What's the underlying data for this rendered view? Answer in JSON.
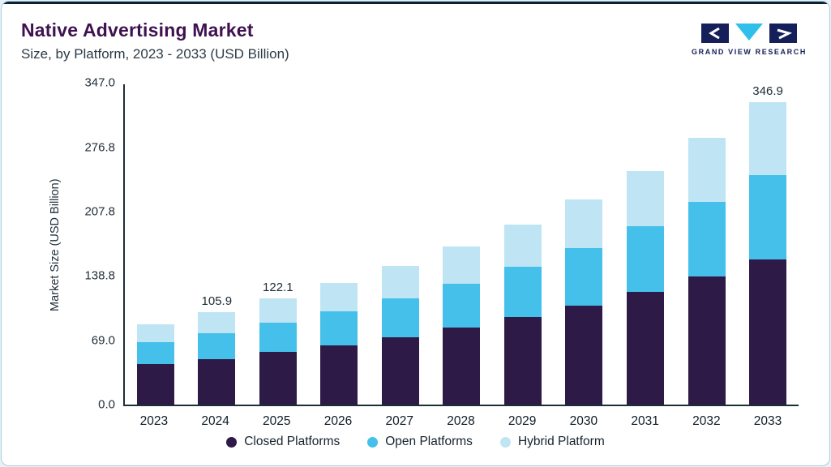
{
  "page": {
    "title": "Native Advertising Market",
    "subtitle": "Size, by Platform, 2023 - 2033 (USD Billion)"
  },
  "logo": {
    "text": "GRAND VIEW RESEARCH"
  },
  "colors": {
    "title_accent": "#3F1150",
    "closed_platforms": "#2E1A47",
    "open_platforms": "#45C0EA",
    "hybrid_platform": "#BFE5F4",
    "logo_navy": "#15205A",
    "logo_cyan": "#2EC0EA"
  },
  "chart_data": {
    "type": "bar",
    "stacked": true,
    "title": "Native Advertising Market",
    "subtitle": "Size, by Platform, 2023 - 2033 (USD Billion)",
    "xlabel": "",
    "ylabel": "Market Size (USD Billion)",
    "ylim": [
      0,
      347
    ],
    "grid": false,
    "legend_position": "bottom",
    "y_ticks": [
      0.0,
      69.0,
      138.8,
      207.8,
      276.8,
      347.0
    ],
    "y_tick_labels": [
      "0.0",
      "69.0",
      "138.8",
      "207.8",
      "276.8",
      "347.0"
    ],
    "categories": [
      "2023",
      "2024",
      "2025",
      "2026",
      "2027",
      "2028",
      "2029",
      "2030",
      "2031",
      "2032",
      "2033"
    ],
    "series": [
      {
        "name": "Closed Platforms",
        "color": "#2E1A47",
        "values": [
          46.1,
          52.5,
          60.0,
          68.2,
          77.5,
          88.0,
          100.0,
          113.7,
          129.3,
          146.9,
          166.0
        ]
      },
      {
        "name": "Open Platforms",
        "color": "#45C0EA",
        "values": [
          25.8,
          29.6,
          34.2,
          39.1,
          44.5,
          50.7,
          57.8,
          65.9,
          75.1,
          85.6,
          97.2
        ]
      },
      {
        "name": "Hybrid Platform",
        "color": "#BFE5F4",
        "values": [
          20.2,
          23.8,
          27.9,
          32.2,
          37.0,
          42.5,
          48.7,
          55.7,
          63.8,
          73.1,
          83.7
        ]
      }
    ],
    "totals": [
      92.1,
      105.9,
      122.1,
      139.5,
      159.0,
      181.2,
      206.5,
      235.3,
      268.2,
      305.6,
      346.9
    ],
    "total_labels_shown": [
      "",
      "105.9",
      "122.1",
      "",
      "",
      "",
      "",
      "",
      "",
      "",
      "346.9"
    ]
  }
}
